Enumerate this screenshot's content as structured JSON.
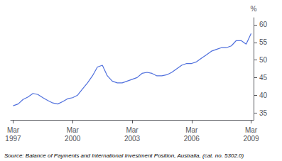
{
  "chart_data": {
    "type": "line",
    "ylabel": "%",
    "source": "Source: Balance of Payments and International Investment Position, Australia, (cat. no. 5302.0)",
    "categories": [
      "Mar\n1997",
      null,
      null,
      null,
      null,
      null,
      null,
      null,
      null,
      null,
      null,
      null,
      "Mar\n2000",
      null,
      null,
      null,
      null,
      null,
      null,
      null,
      null,
      null,
      null,
      null,
      "Mar\n2003",
      null,
      null,
      null,
      null,
      null,
      null,
      null,
      null,
      null,
      null,
      null,
      "Mar\n2006",
      null,
      null,
      null,
      null,
      null,
      null,
      null,
      null,
      null,
      null,
      null,
      "Mar\n2009"
    ],
    "values": [
      37.0,
      37.5,
      38.8,
      39.5,
      40.5,
      40.2,
      39.3,
      38.5,
      37.8,
      37.5,
      38.2,
      39.0,
      39.3,
      40.0,
      41.8,
      43.5,
      45.5,
      48.0,
      48.5,
      45.5,
      44.0,
      43.5,
      43.5,
      44.0,
      44.5,
      45.0,
      46.2,
      46.5,
      46.2,
      45.5,
      45.5,
      45.8,
      46.5,
      47.5,
      48.5,
      49.0,
      49.0,
      49.5,
      50.5,
      51.5,
      52.5,
      53.0,
      53.5,
      53.5,
      54.0,
      55.5,
      55.5,
      54.5,
      57.5
    ],
    "ylim": [
      33,
      62
    ],
    "yticks": [
      35,
      40,
      45,
      50,
      55,
      60
    ],
    "grid": false
  }
}
